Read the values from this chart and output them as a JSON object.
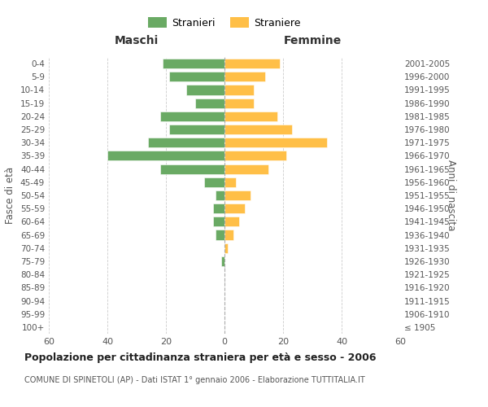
{
  "age_groups": [
    "100+",
    "95-99",
    "90-94",
    "85-89",
    "80-84",
    "75-79",
    "70-74",
    "65-69",
    "60-64",
    "55-59",
    "50-54",
    "45-49",
    "40-44",
    "35-39",
    "30-34",
    "25-29",
    "20-24",
    "15-19",
    "10-14",
    "5-9",
    "0-4"
  ],
  "birth_years": [
    "≤ 1905",
    "1906-1910",
    "1911-1915",
    "1916-1920",
    "1921-1925",
    "1926-1930",
    "1931-1935",
    "1936-1940",
    "1941-1945",
    "1946-1950",
    "1951-1955",
    "1956-1960",
    "1961-1965",
    "1966-1970",
    "1971-1975",
    "1976-1980",
    "1981-1985",
    "1986-1990",
    "1991-1995",
    "1996-2000",
    "2001-2005"
  ],
  "males": [
    0,
    0,
    0,
    0,
    0,
    1,
    0,
    3,
    4,
    4,
    3,
    7,
    22,
    40,
    26,
    19,
    22,
    10,
    13,
    19,
    21
  ],
  "females": [
    0,
    0,
    0,
    0,
    0,
    0,
    1,
    3,
    5,
    7,
    9,
    4,
    15,
    21,
    35,
    23,
    18,
    10,
    10,
    14,
    19
  ],
  "male_color": "#6aaa64",
  "female_color": "#ffbf47",
  "background_color": "#ffffff",
  "grid_color": "#cccccc",
  "title": "Popolazione per cittadinanza straniera per età e sesso - 2006",
  "subtitle": "COMUNE DI SPINETOLI (AP) - Dati ISTAT 1° gennaio 2006 - Elaborazione TUTTITALIA.IT",
  "xlabel_left": "Maschi",
  "xlabel_right": "Femmine",
  "ylabel_left": "Fasce di età",
  "ylabel_right": "Anni di nascita",
  "legend_male": "Stranieri",
  "legend_female": "Straniere",
  "xlim": 60,
  "xticks": [
    -60,
    -40,
    -20,
    0,
    20,
    40,
    60
  ],
  "xtick_labels": [
    "60",
    "40",
    "20",
    "0",
    "20",
    "40",
    "60"
  ]
}
